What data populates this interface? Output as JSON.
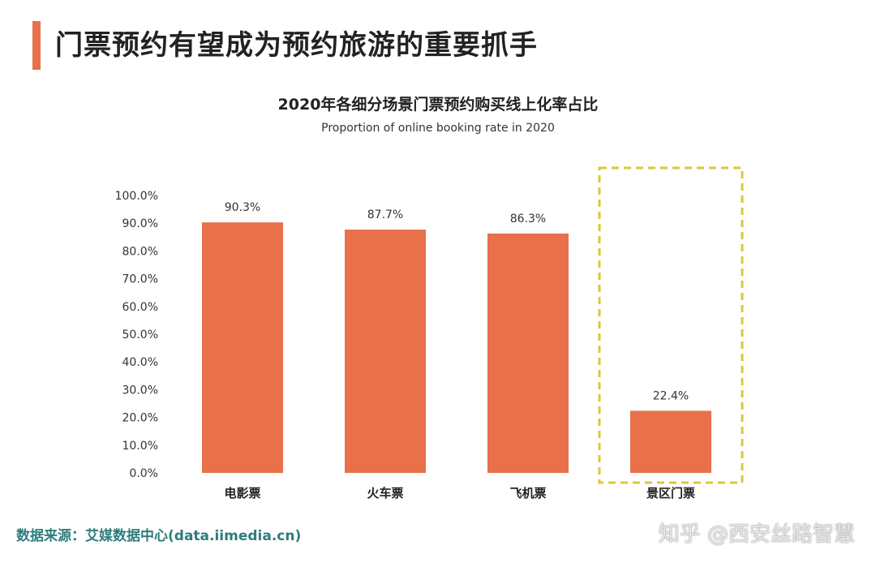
{
  "header": {
    "title": "门票预约有望成为预约旅游的重要抓手"
  },
  "chart_data": {
    "type": "bar",
    "title": "2020年各细分场景门票预约购买线上化率占比",
    "subtitle": "Proportion of online booking rate in 2020",
    "categories": [
      "电影票",
      "火车票",
      "飞机票",
      "景区门票"
    ],
    "values": [
      90.3,
      87.7,
      86.3,
      22.4
    ],
    "data_labels": [
      "90.3%",
      "87.7%",
      "86.3%",
      "22.4%"
    ],
    "ylim": [
      0,
      100
    ],
    "yticks": [
      "0.0%",
      "10.0%",
      "20.0%",
      "30.0%",
      "40.0%",
      "50.0%",
      "60.0%",
      "70.0%",
      "80.0%",
      "90.0%",
      "100.0%"
    ],
    "grid": false,
    "highlight_category": "景区门票",
    "colors": {
      "bar": "#E8704A",
      "highlight_border": "#D9C93A"
    }
  },
  "footer": {
    "source": "数据来源：艾媒数据中心(data.iimedia.cn)",
    "watermark": "知乎 @西安丝路智慧"
  }
}
